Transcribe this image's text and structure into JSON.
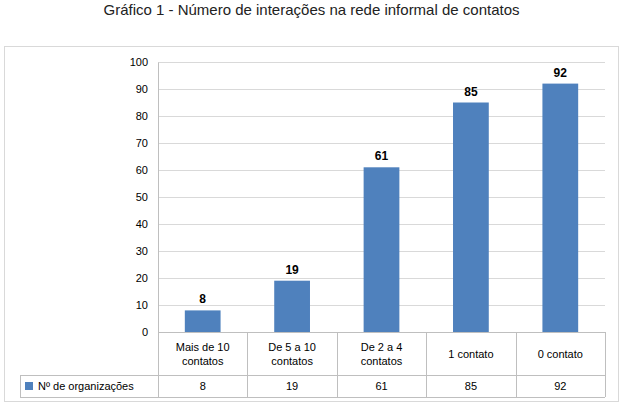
{
  "chart_data": {
    "type": "bar",
    "title": "Gráfico 1 - Número de interações na rede informal de contatos",
    "categories": [
      "Mais de 10 contatos",
      "De 5 a 10 contatos",
      "De 2 a 4 contatos",
      "1 contato",
      "0 contato"
    ],
    "series": [
      {
        "name": "Nº de organizações",
        "color": "#4f81bd",
        "values": [
          8,
          19,
          61,
          85,
          92
        ]
      }
    ],
    "ylim": [
      0,
      100
    ],
    "yticks": [
      0,
      10,
      20,
      30,
      40,
      50,
      60,
      70,
      80,
      90,
      100
    ],
    "grid": true,
    "data_labels": true
  }
}
